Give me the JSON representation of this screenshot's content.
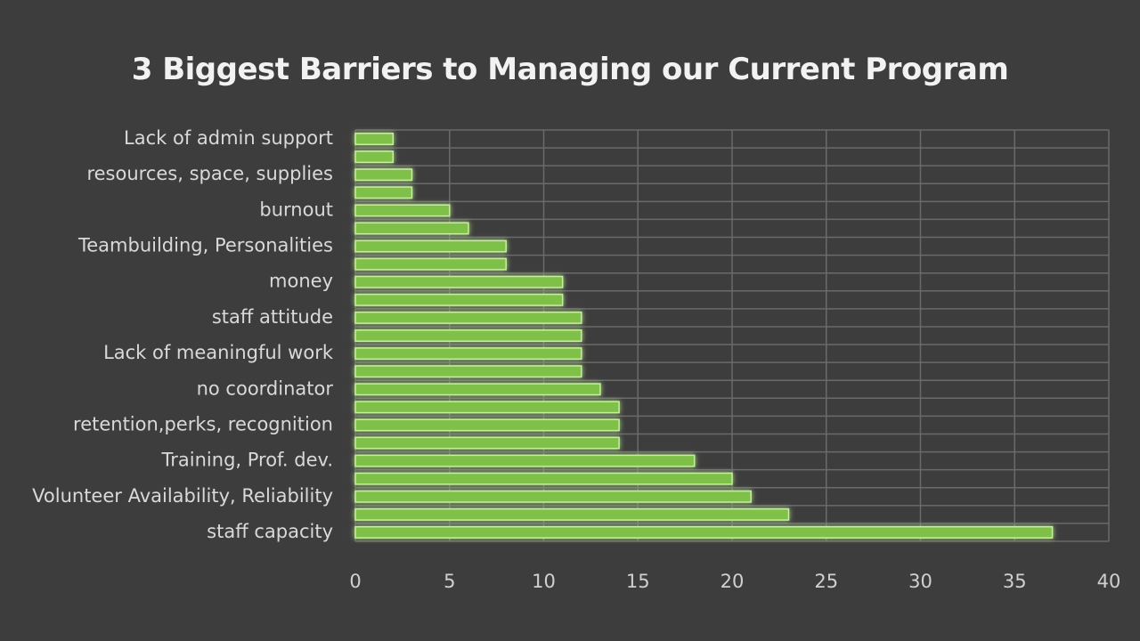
{
  "colors": {
    "background": "#3d3d3d",
    "bar_fill": "#7fc04a",
    "bar_stroke": "#c7eea0",
    "bar_glow": "#7ad03a",
    "gridline": "#6a6a6a"
  },
  "chart_data": {
    "type": "bar",
    "orientation": "horizontal",
    "title": "3 Biggest Barriers to Managing our Current Program",
    "xlabel": "",
    "ylabel": "",
    "xlim": [
      0,
      40
    ],
    "x_ticks": [
      0,
      5,
      10,
      15,
      20,
      25,
      30,
      35,
      40
    ],
    "grid": true,
    "legend": "none",
    "categories": [
      "Lack of admin support",
      "",
      "resources, space, supplies",
      "",
      "burnout",
      "",
      "Teambuilding, Personalities",
      "",
      "money",
      "",
      "staff attitude",
      "",
      "Lack of meaningful work",
      "",
      "no coordinator",
      "",
      "retention,perks, recognition",
      "",
      "Training, Prof. dev.",
      "",
      "Volunteer Availability, Reliability",
      "",
      "staff capacity"
    ],
    "values": [
      2,
      2,
      3,
      3,
      5,
      6,
      8,
      8,
      11,
      11,
      12,
      12,
      12,
      12,
      13,
      14,
      14,
      14,
      18,
      20,
      21,
      23,
      37
    ]
  }
}
